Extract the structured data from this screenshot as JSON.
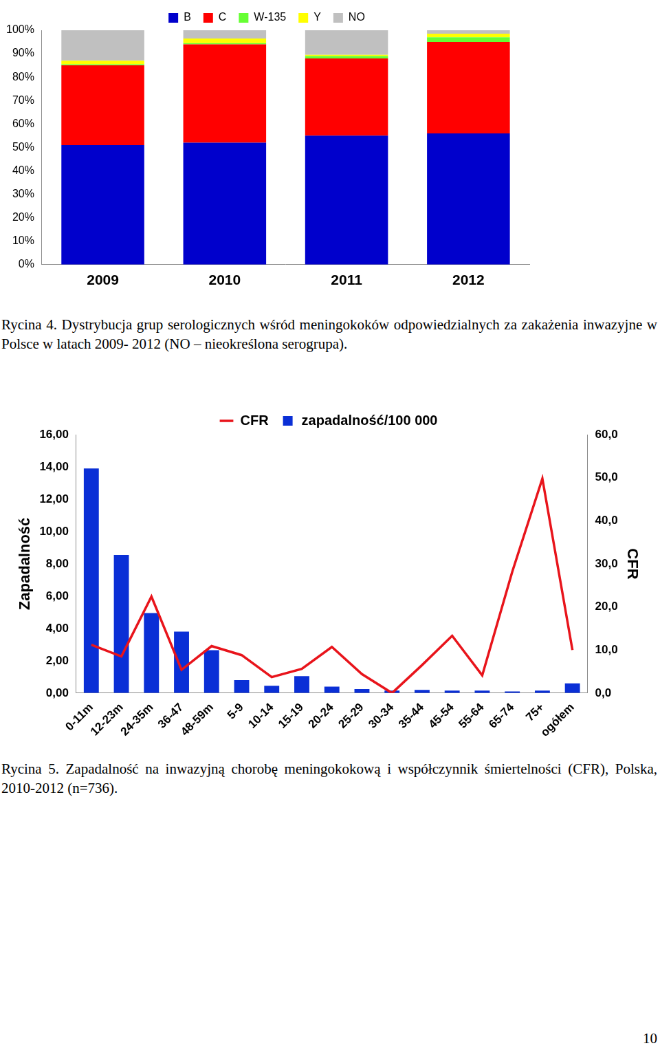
{
  "chart_data": [
    {
      "type": "bar",
      "stacked": true,
      "legend": "top",
      "grid": false,
      "categories": [
        "2009",
        "2010",
        "2011",
        "2012"
      ],
      "series": [
        {
          "name": "B",
          "color": "#0000cc",
          "values": [
            51,
            52,
            55,
            56
          ]
        },
        {
          "name": "C",
          "color": "#ff0000",
          "values": [
            34,
            42,
            33,
            39
          ]
        },
        {
          "name": "W-135",
          "color": "#66ff33",
          "values": [
            0.5,
            0.5,
            1,
            2
          ]
        },
        {
          "name": "Y",
          "color": "#ffff00",
          "values": [
            1.5,
            2,
            0.5,
            1.5
          ]
        },
        {
          "name": "NO",
          "color": "#c0c0c0",
          "values": [
            13,
            3.5,
            10.5,
            1.5
          ]
        }
      ],
      "ylim": [
        0,
        100
      ],
      "yticks": [
        {
          "value": 0,
          "label": "0%"
        },
        {
          "value": 10,
          "label": "10%"
        },
        {
          "value": 20,
          "label": "20%"
        },
        {
          "value": 30,
          "label": "30%"
        },
        {
          "value": 40,
          "label": "40%"
        },
        {
          "value": 50,
          "label": "50%"
        },
        {
          "value": 60,
          "label": "60%"
        },
        {
          "value": 70,
          "label": "70%"
        },
        {
          "value": 80,
          "label": "80%"
        },
        {
          "value": 90,
          "label": "90%"
        },
        {
          "value": 100,
          "label": "100%"
        }
      ],
      "caption": "Rycina 4. Dystrybucja grup serologicznych wśród meningokoków odpowiedzialnych za zakażenia inwazyjne w Polsce w latach 2009- 2012 (NO – nieokreślona serogrupa)."
    },
    {
      "type": "bar",
      "legend": "top",
      "grid": false,
      "ylabel": "Zapadalność",
      "y2label": "CFR",
      "categories": [
        "0-11m",
        "12-23m",
        "24-35m",
        "36-47",
        "48-59m",
        "5-9",
        "10-14",
        "15-19",
        "20-24",
        "25-29",
        "30-34",
        "35-44",
        "45-54",
        "55-64",
        "65-74",
        "75+",
        "ogółem"
      ],
      "series": [
        {
          "name": "zapadalność/100 000",
          "type": "bar",
          "color": "#0a2fd6",
          "values": [
            13.9,
            8.55,
            4.95,
            3.8,
            2.65,
            0.8,
            0.45,
            1.05,
            0.4,
            0.25,
            0.15,
            0.2,
            0.15,
            0.15,
            0.1,
            0.15,
            0.6
          ]
        },
        {
          "name": "CFR",
          "type": "line",
          "axis": "y2",
          "color": "#e8141b",
          "values": [
            11.2,
            8.5,
            22.4,
            5.4,
            10.9,
            8.8,
            3.7,
            5.6,
            10.7,
            4.4,
            0,
            6.5,
            13.3,
            4.1,
            28.2,
            49.8,
            10.0
          ]
        }
      ],
      "ylim": [
        0,
        16
      ],
      "yticks": [
        {
          "value": 0,
          "label": "0,00"
        },
        {
          "value": 2,
          "label": "2,00"
        },
        {
          "value": 4,
          "label": "4,00"
        },
        {
          "value": 6,
          "label": "6,00"
        },
        {
          "value": 8,
          "label": "8,00"
        },
        {
          "value": 10,
          "label": "10,00"
        },
        {
          "value": 12,
          "label": "12,00"
        },
        {
          "value": 14,
          "label": "14,00"
        },
        {
          "value": 16,
          "label": "16,00"
        }
      ],
      "y2lim": [
        0,
        60
      ],
      "y2ticks": [
        {
          "value": 0,
          "label": "0,0"
        },
        {
          "value": 10,
          "label": "10,0"
        },
        {
          "value": 20,
          "label": "20,0"
        },
        {
          "value": 30,
          "label": "30,0"
        },
        {
          "value": 40,
          "label": "40,0"
        },
        {
          "value": 50,
          "label": "50,0"
        },
        {
          "value": 60,
          "label": "60,0"
        }
      ],
      "caption": "Rycina 5. Zapadalność na inwazyjną chorobę meningokokową i współczynnik śmiertelności (CFR), Polska, 2010-2012 (n=736)."
    }
  ],
  "page_number": 10
}
